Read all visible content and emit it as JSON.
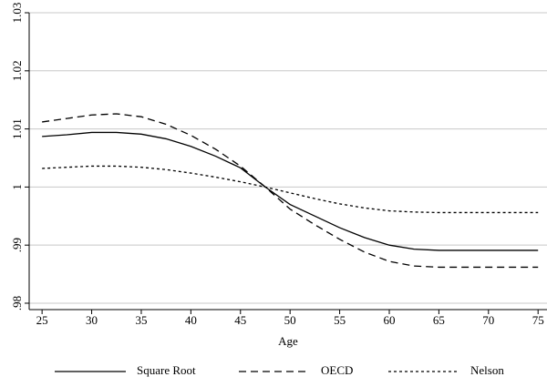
{
  "chart_data": {
    "type": "line",
    "xlabel": "Age",
    "x": [
      25,
      27.5,
      30,
      32.5,
      35,
      37.5,
      40,
      42.5,
      45,
      47.5,
      50,
      52.5,
      55,
      57.5,
      60,
      62.5,
      65,
      67.5,
      70,
      72.5,
      75
    ],
    "series": [
      {
        "name": "Square Root",
        "color": "#000000",
        "linestyle": "solid",
        "values": [
          1.0087,
          1.009,
          1.0094,
          1.0094,
          1.0091,
          1.0083,
          1.007,
          1.0053,
          1.0033,
          1.0,
          0.997,
          0.995,
          0.993,
          0.9913,
          0.99,
          0.9893,
          0.9891,
          0.9891,
          0.9891,
          0.9891,
          0.9891
        ]
      },
      {
        "name": "OECD",
        "color": "#000000",
        "linestyle": "dashed",
        "values": [
          1.0112,
          1.0118,
          1.0124,
          1.0126,
          1.0121,
          1.0108,
          1.0089,
          1.0065,
          1.0036,
          1.0,
          0.9962,
          0.9935,
          0.991,
          0.9888,
          0.9872,
          0.9864,
          0.9862,
          0.9862,
          0.9862,
          0.9862,
          0.9862
        ]
      },
      {
        "name": "Nelson",
        "color": "#000000",
        "linestyle": "dotted",
        "values": [
          1.0032,
          1.0034,
          1.0036,
          1.0036,
          1.0034,
          1.003,
          1.0024,
          1.0017,
          1.0009,
          1.0,
          0.999,
          0.998,
          0.9971,
          0.9964,
          0.9959,
          0.9957,
          0.9956,
          0.9956,
          0.9956,
          0.9956,
          0.9956
        ]
      }
    ],
    "xlim": [
      23.7,
      75.9
    ],
    "xticks": [
      25,
      30,
      35,
      40,
      45,
      50,
      55,
      60,
      65,
      70,
      75
    ],
    "ylim": [
      0.9789,
      1.03
    ],
    "yticks": [
      {
        "value": 0.98,
        "label": ".98"
      },
      {
        "value": 0.99,
        "label": ".99"
      },
      1,
      1.01,
      1.02,
      1.03
    ],
    "grid": true,
    "legend": "bottom"
  }
}
